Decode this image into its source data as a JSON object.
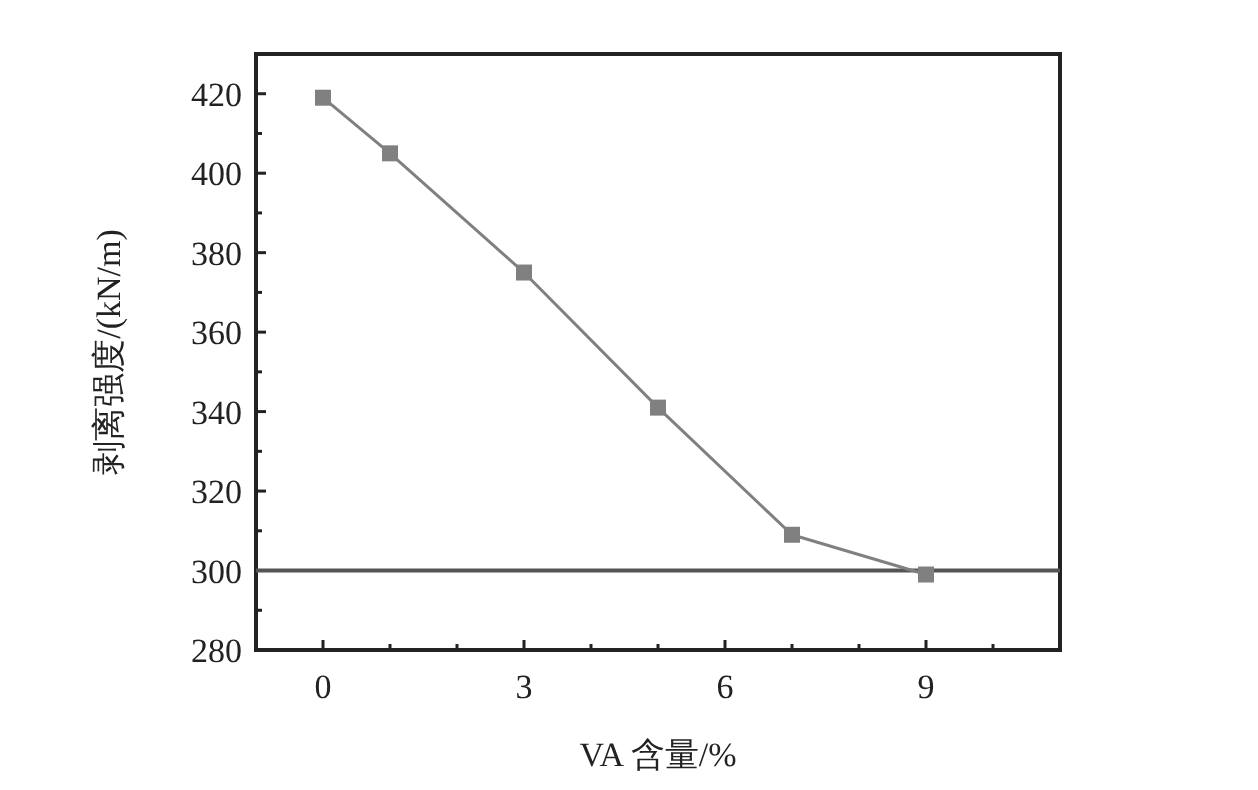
{
  "chart_data": {
    "type": "line",
    "xlabel": "VA 含量/%",
    "ylabel": "剥离强度/(kN/m)",
    "x": [
      0,
      1,
      3,
      5,
      7,
      9
    ],
    "series": [
      {
        "color": "#808080",
        "values": [
          419,
          405,
          375,
          341,
          309,
          299
        ]
      }
    ],
    "marker": "square",
    "line_style": "solid",
    "xlim": [
      -1,
      11
    ],
    "xticks": [
      0,
      {
        "value": 1,
        "label": null
      },
      {
        "value": 2,
        "label": null
      },
      3,
      {
        "value": 4,
        "label": null
      },
      {
        "value": 5,
        "label": null
      },
      6,
      {
        "value": 7,
        "label": null
      },
      {
        "value": 8,
        "label": null
      },
      9,
      {
        "value": 10,
        "label": null
      }
    ],
    "ylim": [
      280,
      430
    ],
    "yticks": [
      280,
      {
        "value": 290,
        "label": null
      },
      300,
      {
        "value": 310,
        "label": null
      },
      320,
      {
        "value": 330,
        "label": null
      },
      340,
      {
        "value": 350,
        "label": null
      },
      360,
      {
        "value": 370,
        "label": null
      },
      380,
      {
        "value": 390,
        "label": null
      },
      400,
      {
        "value": 410,
        "label": null
      },
      420
    ],
    "ref_lines": [
      {
        "axis": "y",
        "value": 300,
        "color": "#555555"
      }
    ]
  }
}
